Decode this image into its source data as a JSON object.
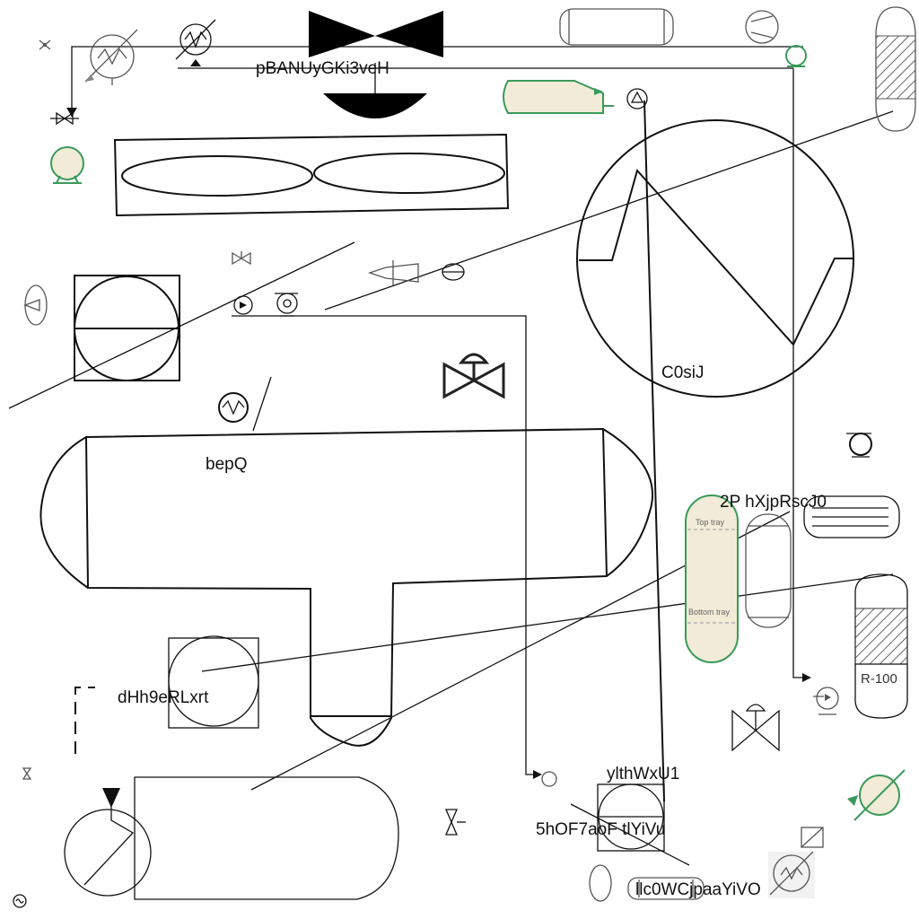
{
  "labels": {
    "top_title": "pBANUyGKi3veH",
    "big_exchanger": "C0siJ",
    "vessel": "bepQ",
    "column_tag": "2P hXjpRscJ0",
    "left_tag": "dHh9eRLxrt",
    "bottom_tag1": "ylthWxU1",
    "bottom_tag2": "5hOF7aoF tlYiVu",
    "bottom_tag3": "llc0WCjpaaYiVO",
    "reactor_tag": "R-100",
    "top_tray": "Top tray",
    "bottom_tray": "Bottom tray"
  },
  "colors": {
    "line": "#111111",
    "green": "#3a9a5a",
    "fill_beige": "#f1ebd7",
    "grey": "#666666"
  }
}
